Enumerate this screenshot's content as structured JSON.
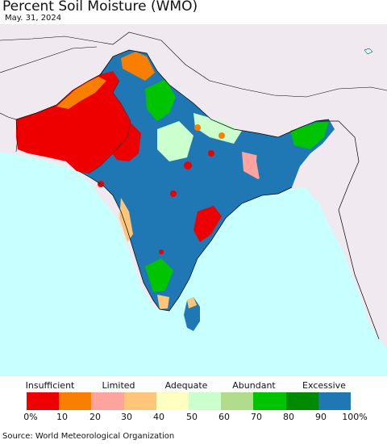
{
  "header": {
    "title": "Percent Soil Moisture (WMO)",
    "date": "May. 31, 2024"
  },
  "legend": {
    "categories": [
      "Insufficient",
      "Limited",
      "Adequate",
      "Abundant",
      "Excessive"
    ],
    "colors": [
      "#ee0000",
      "#f97f00",
      "#ffa39e",
      "#ffc578",
      "#ffffc0",
      "#cbffcd",
      "#b0dc8c",
      "#00c400",
      "#008a00",
      "#1f78b4"
    ],
    "ticks": [
      "0%",
      "10",
      "20",
      "30",
      "40",
      "50",
      "60",
      "70",
      "80",
      "90",
      "100%"
    ]
  },
  "map_colors": {
    "ocean": "#c8ffff",
    "outside_land": "#f0eaf0",
    "borders": "#000000"
  },
  "footer": {
    "source": "Source: World Meteorological Organization"
  }
}
